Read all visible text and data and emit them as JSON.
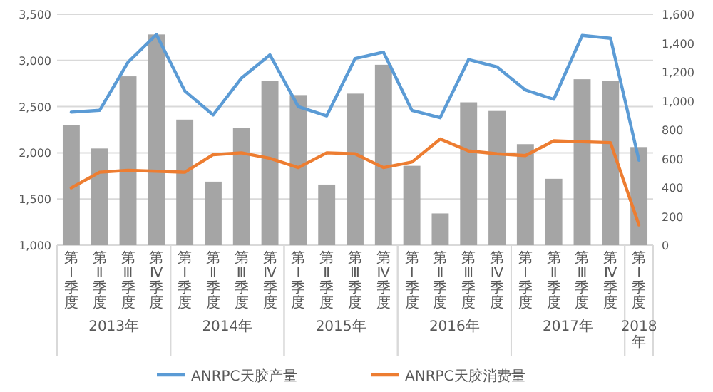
{
  "chart_data": {
    "type": "bar",
    "categories": [
      "第Ⅰ季度",
      "第Ⅱ季度",
      "第Ⅲ季度",
      "第Ⅳ季度",
      "第Ⅰ季度",
      "第Ⅱ季度",
      "第Ⅲ季度",
      "第Ⅳ季度",
      "第Ⅰ季度",
      "第Ⅱ季度",
      "第Ⅲ季度",
      "第Ⅳ季度",
      "第Ⅰ季度",
      "第Ⅱ季度",
      "第Ⅲ季度",
      "第Ⅳ季度",
      "第Ⅰ季度",
      "第Ⅱ季度",
      "第Ⅲ季度",
      "第Ⅳ季度",
      "第Ⅰ季度"
    ],
    "annotations": [
      "2013年",
      "2014年",
      "2015年",
      "2016年",
      "2017年",
      "2018年"
    ],
    "series": [
      {
        "axis": "y2",
        "color": "#a5a5a5",
        "values": [
          830,
          670,
          1170,
          1460,
          870,
          440,
          810,
          1140,
          1040,
          420,
          1050,
          1250,
          550,
          220,
          990,
          930,
          700,
          460,
          1150,
          1140,
          680
        ]
      },
      {
        "type": "line",
        "name": "ANRPC天胶产量",
        "color": "#5b9bd5",
        "values": [
          2440,
          2460,
          2980,
          3280,
          2670,
          2410,
          2810,
          3060,
          2500,
          2400,
          3020,
          3090,
          2460,
          2380,
          3010,
          2930,
          2680,
          2580,
          3270,
          3240,
          1920
        ]
      },
      {
        "type": "line",
        "name": "ANRPC天胶消费量",
        "color": "#ed7d31",
        "values": [
          1620,
          1790,
          1810,
          1800,
          1790,
          1980,
          2000,
          1940,
          1840,
          2000,
          1990,
          1840,
          1900,
          2150,
          2020,
          1990,
          1970,
          2130,
          2120,
          2110,
          1220
        ]
      }
    ],
    "ylim": [
      1000,
      3500
    ],
    "yticks": [
      {
        "value": 1000,
        "label": "1,000"
      },
      {
        "value": 1500,
        "label": "1,500"
      },
      {
        "value": 2000,
        "label": "2,000"
      },
      {
        "value": 2500,
        "label": "2,500"
      },
      {
        "value": 3000,
        "label": "3,000"
      },
      {
        "value": 3500,
        "label": "3,500"
      }
    ],
    "y2lim": [
      0,
      1600
    ],
    "y2ticks": [
      0,
      200,
      400,
      600,
      800,
      {
        "value": 1000,
        "label": "1,000"
      },
      {
        "value": 1200,
        "label": "1,200"
      },
      {
        "value": 1400,
        "label": "1,400"
      },
      {
        "value": 1600,
        "label": "1,600"
      }
    ],
    "grid": "y",
    "legend": "bottom"
  }
}
